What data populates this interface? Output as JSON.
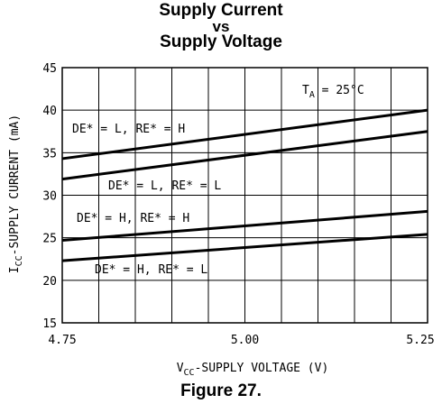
{
  "title": {
    "line1": "Supply Current",
    "line2": "vs",
    "line3": "Supply Voltage"
  },
  "figure_caption": "Figure 27.",
  "chart_data": {
    "type": "line",
    "xlabel": {
      "main": "V",
      "sub": "CC",
      "rest": "-SUPPLY VOLTAGE (V)"
    },
    "ylabel": {
      "main": "I",
      "sub": "CC",
      "rest": "-SUPPLY CURRENT (mA)"
    },
    "xlim": [
      4.75,
      5.25
    ],
    "ylim": [
      15,
      45
    ],
    "x_ticks": [
      4.75,
      5.0,
      5.25
    ],
    "x_tick_labels": [
      "4.75",
      "5.00",
      "5.25"
    ],
    "y_ticks": [
      15,
      20,
      25,
      30,
      35,
      40,
      45
    ],
    "y_tick_labels": [
      "15",
      "20",
      "25",
      "30",
      "35",
      "40",
      "45"
    ],
    "x_grid_values": [
      4.75,
      4.8,
      4.85,
      4.9,
      4.95,
      5.0,
      5.05,
      5.1,
      5.15,
      5.2,
      5.25
    ],
    "grid": true,
    "annotation": {
      "main": "T",
      "sub": "A",
      "rest": " = 25°C"
    },
    "series": [
      {
        "label": "DE* = L, RE* = H",
        "x": [
          4.75,
          5.25
        ],
        "y": [
          34.3,
          40.0
        ]
      },
      {
        "label": "DE* = L, RE* = L",
        "x": [
          4.75,
          5.25
        ],
        "y": [
          31.9,
          37.5
        ]
      },
      {
        "label": "DE* = H, RE* = H",
        "x": [
          4.75,
          5.25
        ],
        "y": [
          24.7,
          28.1
        ]
      },
      {
        "label": "DE* = H, RE* = L",
        "x": [
          4.75,
          5.25
        ],
        "y": [
          22.3,
          25.4
        ]
      }
    ]
  }
}
